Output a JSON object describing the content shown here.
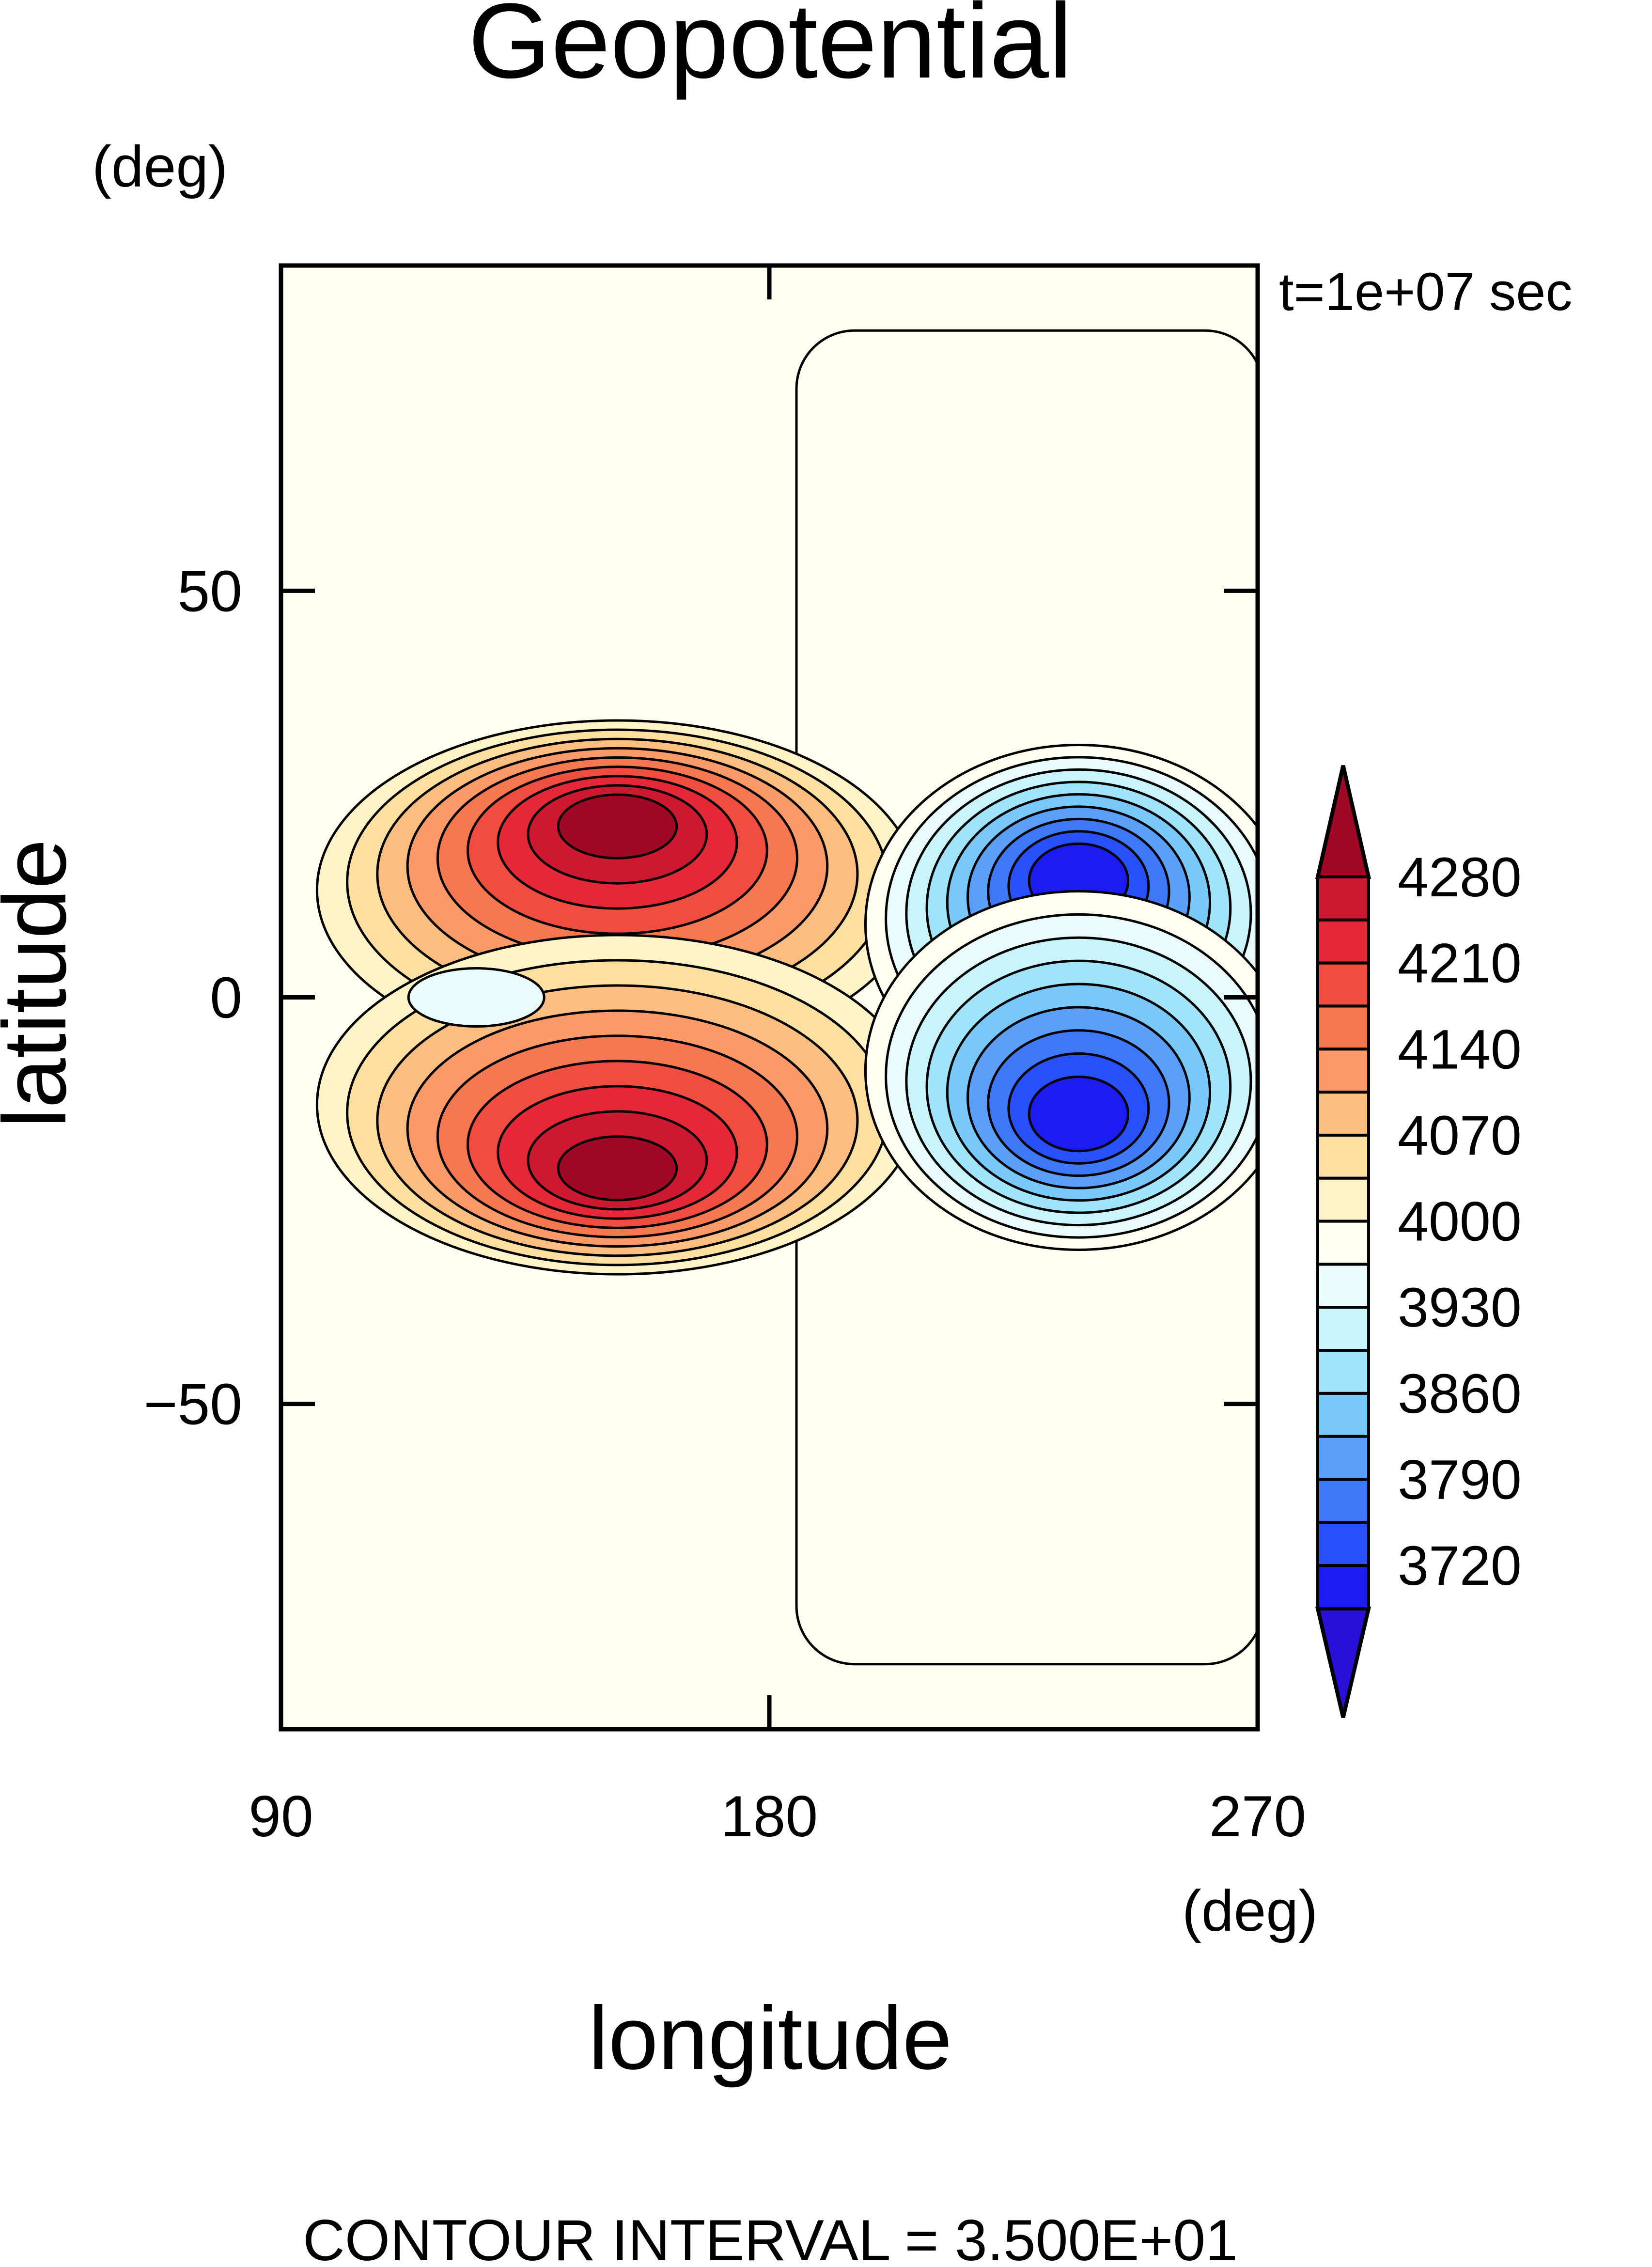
{
  "chart_data": {
    "type": "contour",
    "title": "Geopotential",
    "xlabel": "longitude",
    "ylabel": "latitude",
    "x_unit": "(deg)",
    "y_unit": "(deg)",
    "time_label": "t=1e+07 sec",
    "xlim": [
      90,
      270
    ],
    "ylim": [
      -90,
      90
    ],
    "x_ticks": [
      90,
      180,
      270
    ],
    "y_ticks": [
      -50,
      0,
      50
    ],
    "x_tick_labels": [
      "90",
      "180",
      "270"
    ],
    "y_tick_labels": [
      "−50",
      "0",
      "50"
    ],
    "contour_interval_text": "CONTOUR INTERVAL = 3.500E+01",
    "contour_interval": 35,
    "colorbar_levels": [
      3685,
      3720,
      3755,
      3790,
      3825,
      3860,
      3895,
      3930,
      3965,
      4000,
      4035,
      4070,
      4105,
      4140,
      4175,
      4210,
      4245,
      4280,
      4315
    ],
    "colorbar_labels": [
      "4280",
      "4210",
      "4140",
      "4070",
      "4000",
      "3930",
      "3860",
      "3790",
      "3720"
    ],
    "colorbar_colors": [
      "#2a0fd6",
      "#1c1cf0",
      "#2850f8",
      "#3c78f8",
      "#5aa0f8",
      "#78c8fa",
      "#a0e4fc",
      "#c8f4fc",
      "#e8fcfc",
      "#fffef0",
      "#fff4c8",
      "#fde0a0",
      "#fbbe80",
      "#fa9a68",
      "#f57850",
      "#f04c40",
      "#e42838",
      "#cc1830",
      "#a00824"
    ],
    "features": [
      {
        "kind": "high",
        "lon": 152,
        "lat": 22,
        "value": 4300
      },
      {
        "kind": "high",
        "lon": 152,
        "lat": -22,
        "value": 4300
      },
      {
        "kind": "low",
        "lon": 237,
        "lat": 15,
        "value": 3700
      },
      {
        "kind": "low",
        "lon": 237,
        "lat": -15,
        "value": 3700
      },
      {
        "kind": "weak-low",
        "lon": 126,
        "lat": 0,
        "value": 3950
      }
    ]
  }
}
